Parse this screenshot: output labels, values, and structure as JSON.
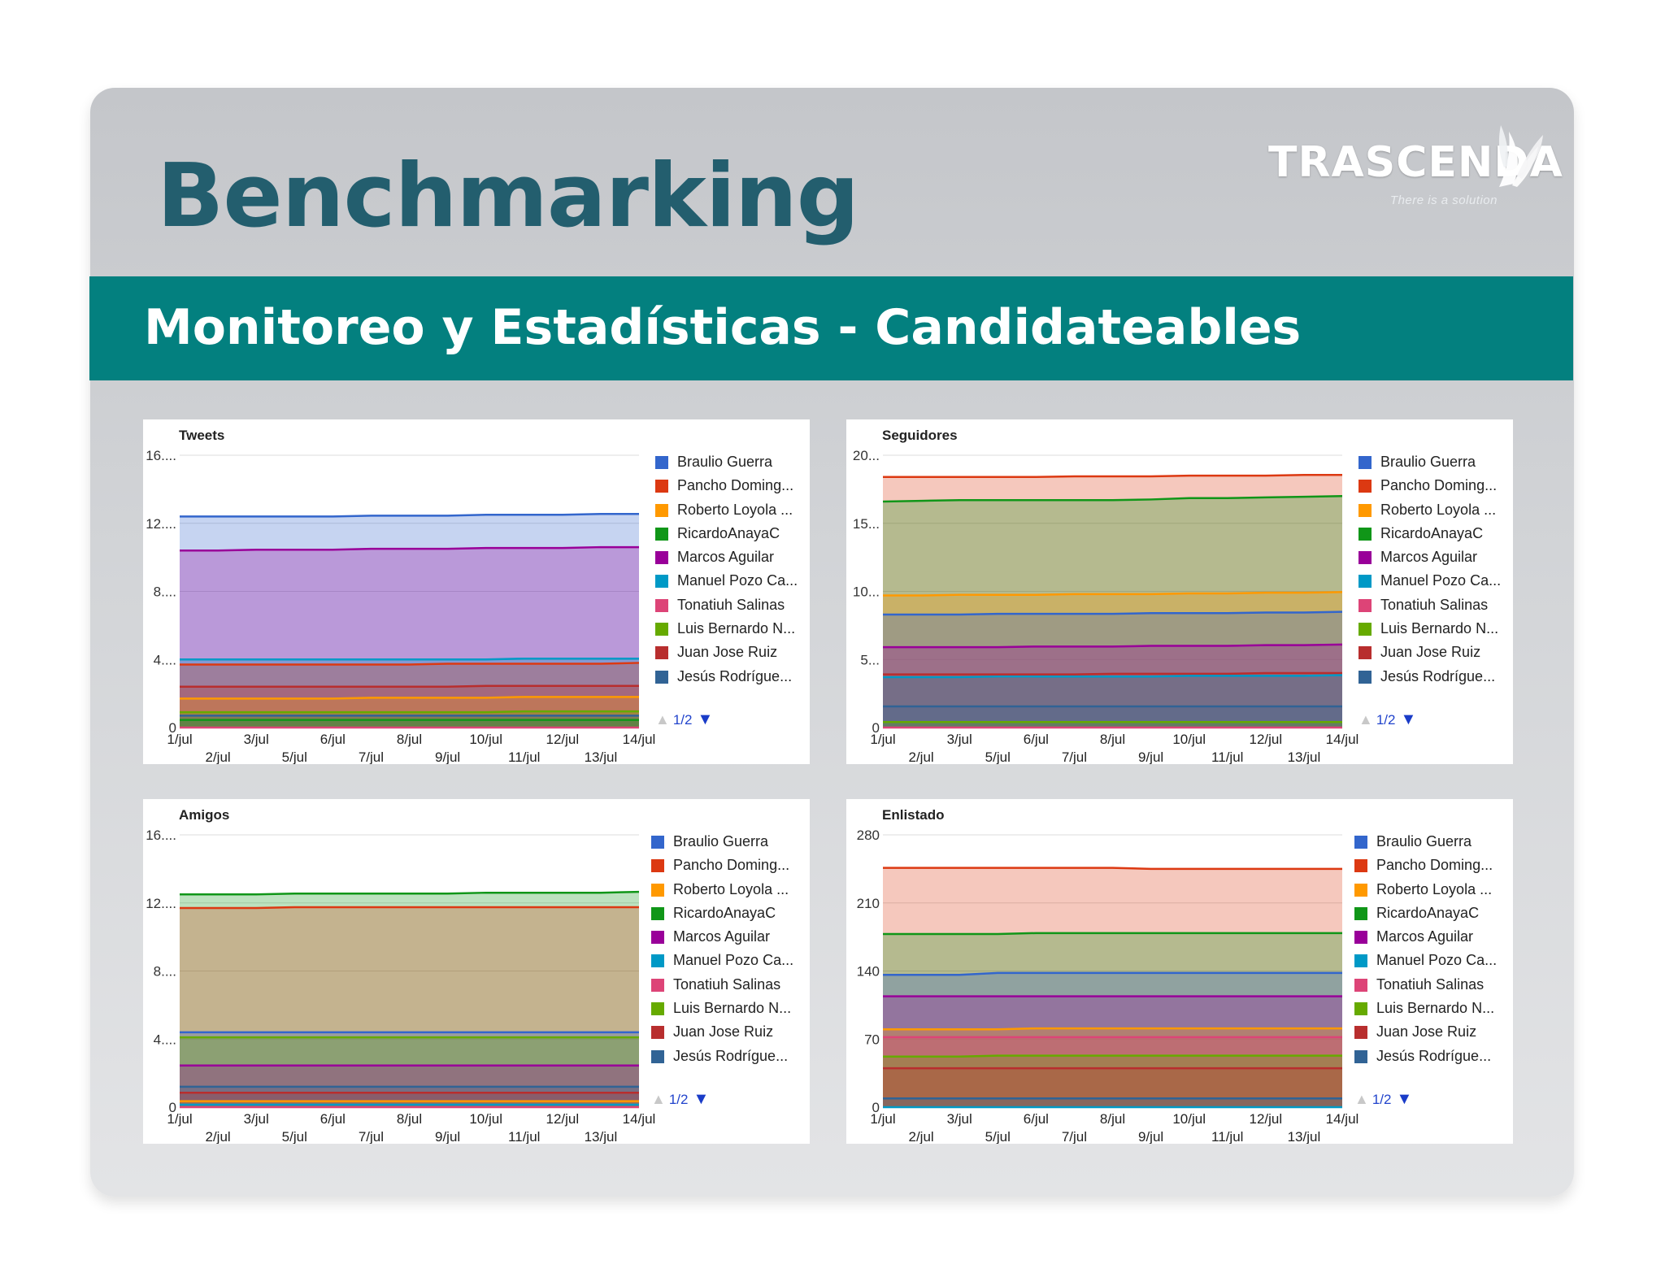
{
  "slide": {
    "title": "Benchmarking",
    "subtitle": "Monitoreo y Estadísticas - Candidateables",
    "brand_name": "TRASCENDA",
    "brand_tagline": "There is a solution",
    "colors": {
      "title": "#235e6e",
      "band": "#03807f",
      "background": "#ffffff"
    }
  },
  "legend": {
    "items": [
      {
        "label": "Braulio Guerra",
        "color": "#3366cc"
      },
      {
        "label": "Pancho Doming...",
        "color": "#dc3912"
      },
      {
        "label": "Roberto Loyola ...",
        "color": "#ff9900"
      },
      {
        "label": "RicardoAnayaC",
        "color": "#109618"
      },
      {
        "label": "Marcos Aguilar",
        "color": "#990099"
      },
      {
        "label": "Manuel Pozo Ca...",
        "color": "#0099c6"
      },
      {
        "label": "Tonatiuh Salinas",
        "color": "#dd4477"
      },
      {
        "label": "Luis Bernardo N...",
        "color": "#66aa00"
      },
      {
        "label": "Juan Jose Ruiz",
        "color": "#b82e2e"
      },
      {
        "label": "Jesús Rodrígue...",
        "color": "#316395"
      }
    ],
    "page_label": "1/2",
    "up_arrow": "▲",
    "down_arrow": "▼"
  },
  "chart_data": [
    {
      "type": "area",
      "title": "Tweets",
      "x": [
        "1/jul",
        "2/jul",
        "3/jul",
        "5/jul",
        "6/jul",
        "7/jul",
        "8/jul",
        "9/jul",
        "10/jul",
        "11/jul",
        "12/jul",
        "13/jul",
        "14/jul"
      ],
      "x_tick_labels": [
        "1/jul",
        "2/jul",
        "3/jul",
        "5/jul",
        "6/jul",
        "7/jul",
        "8/jul",
        "9/jul",
        "10/jul",
        "11/jul",
        "12/jul",
        "13/jul",
        "14/jul"
      ],
      "y_tick_labels": [
        "0",
        "4....",
        "8....",
        "12....",
        "16...."
      ],
      "ylim": [
        0,
        16
      ],
      "series": [
        {
          "name": "Braulio Guerra",
          "color": "#3366cc",
          "values": [
            12.4,
            12.4,
            12.4,
            12.4,
            12.4,
            12.45,
            12.45,
            12.45,
            12.5,
            12.5,
            12.5,
            12.55,
            12.55
          ]
        },
        {
          "name": "Marcos Aguilar",
          "color": "#990099",
          "values": [
            10.4,
            10.4,
            10.45,
            10.45,
            10.45,
            10.5,
            10.5,
            10.5,
            10.55,
            10.55,
            10.55,
            10.6,
            10.6
          ]
        },
        {
          "name": "Manuel Pozo Ca...",
          "color": "#0099c6",
          "values": [
            4.0,
            4.0,
            4.0,
            4.0,
            4.0,
            4.0,
            4.0,
            4.0,
            4.0,
            4.05,
            4.05,
            4.05,
            4.05
          ]
        },
        {
          "name": "Pancho Doming...",
          "color": "#dc3912",
          "values": [
            3.7,
            3.7,
            3.7,
            3.7,
            3.7,
            3.7,
            3.7,
            3.75,
            3.75,
            3.75,
            3.75,
            3.75,
            3.8
          ]
        },
        {
          "name": "Juan Jose Ruiz",
          "color": "#b82e2e",
          "values": [
            2.4,
            2.4,
            2.4,
            2.4,
            2.4,
            2.4,
            2.4,
            2.4,
            2.45,
            2.45,
            2.45,
            2.45,
            2.45
          ]
        },
        {
          "name": "Roberto Loyola ...",
          "color": "#ff9900",
          "values": [
            1.7,
            1.7,
            1.7,
            1.7,
            1.7,
            1.75,
            1.75,
            1.75,
            1.75,
            1.8,
            1.8,
            1.8,
            1.8
          ]
        },
        {
          "name": "Luis Bernardo N...",
          "color": "#66aa00",
          "values": [
            0.9,
            0.9,
            0.9,
            0.9,
            0.9,
            0.9,
            0.9,
            0.9,
            0.9,
            0.95,
            0.95,
            0.95,
            0.95
          ]
        },
        {
          "name": "Jesús Rodrígue...",
          "color": "#316395",
          "values": [
            0.7,
            0.7,
            0.7,
            0.7,
            0.7,
            0.7,
            0.7,
            0.7,
            0.7,
            0.7,
            0.7,
            0.7,
            0.7
          ]
        },
        {
          "name": "RicardoAnayaC",
          "color": "#109618",
          "values": [
            0.45,
            0.45,
            0.45,
            0.45,
            0.45,
            0.45,
            0.45,
            0.45,
            0.45,
            0.45,
            0.45,
            0.45,
            0.45
          ]
        },
        {
          "name": "Tonatiuh Salinas",
          "color": "#dd4477",
          "values": [
            0,
            0,
            0,
            0,
            0,
            0,
            0,
            0,
            0,
            0,
            0,
            0,
            0
          ]
        }
      ]
    },
    {
      "type": "area",
      "title": "Seguidores",
      "x": [
        "1/jul",
        "2/jul",
        "3/jul",
        "5/jul",
        "6/jul",
        "7/jul",
        "8/jul",
        "9/jul",
        "10/jul",
        "11/jul",
        "12/jul",
        "13/jul",
        "14/jul"
      ],
      "x_tick_labels": [
        "1/jul",
        "2/jul",
        "3/jul",
        "5/jul",
        "6/jul",
        "7/jul",
        "8/jul",
        "9/jul",
        "10/jul",
        "11/jul",
        "12/jul",
        "13/jul",
        "14/jul"
      ],
      "y_tick_labels": [
        "0",
        "5...",
        "10...",
        "15...",
        "20..."
      ],
      "ylim": [
        0,
        20
      ],
      "series": [
        {
          "name": "Pancho Doming...",
          "color": "#dc3912",
          "values": [
            18.4,
            18.4,
            18.4,
            18.4,
            18.4,
            18.45,
            18.45,
            18.45,
            18.5,
            18.5,
            18.5,
            18.55,
            18.55
          ]
        },
        {
          "name": "RicardoAnayaC",
          "color": "#109618",
          "values": [
            16.6,
            16.65,
            16.7,
            16.7,
            16.7,
            16.7,
            16.7,
            16.75,
            16.85,
            16.85,
            16.9,
            16.95,
            17.0
          ]
        },
        {
          "name": "Roberto Loyola ...",
          "color": "#ff9900",
          "values": [
            9.7,
            9.7,
            9.75,
            9.75,
            9.75,
            9.8,
            9.8,
            9.8,
            9.85,
            9.85,
            9.9,
            9.9,
            9.95
          ]
        },
        {
          "name": "Braulio Guerra",
          "color": "#3366cc",
          "values": [
            8.3,
            8.3,
            8.3,
            8.35,
            8.35,
            8.35,
            8.35,
            8.4,
            8.4,
            8.4,
            8.45,
            8.45,
            8.5
          ]
        },
        {
          "name": "Marcos Aguilar",
          "color": "#990099",
          "values": [
            5.9,
            5.9,
            5.9,
            5.9,
            5.95,
            5.95,
            5.95,
            6.0,
            6.0,
            6.0,
            6.05,
            6.05,
            6.1
          ]
        },
        {
          "name": "Juan Jose Ruiz",
          "color": "#b82e2e",
          "values": [
            3.9,
            3.9,
            3.9,
            3.9,
            3.9,
            3.9,
            3.95,
            3.95,
            3.95,
            3.95,
            4.0,
            4.0,
            4.0
          ]
        },
        {
          "name": "Manuel Pozo Ca...",
          "color": "#0099c6",
          "values": [
            3.7,
            3.7,
            3.7,
            3.75,
            3.75,
            3.75,
            3.75,
            3.75,
            3.8,
            3.8,
            3.8,
            3.8,
            3.85
          ]
        },
        {
          "name": "Jesús Rodrígue...",
          "color": "#316395",
          "values": [
            1.55,
            1.55,
            1.55,
            1.55,
            1.55,
            1.55,
            1.55,
            1.55,
            1.55,
            1.55,
            1.55,
            1.55,
            1.55
          ]
        },
        {
          "name": "Luis Bernardo N...",
          "color": "#66aa00",
          "values": [
            0.4,
            0.4,
            0.4,
            0.4,
            0.4,
            0.4,
            0.4,
            0.4,
            0.4,
            0.4,
            0.4,
            0.4,
            0.4
          ]
        },
        {
          "name": "Tonatiuh Salinas",
          "color": "#dd4477",
          "values": [
            0,
            0,
            0,
            0,
            0,
            0,
            0,
            0,
            0,
            0,
            0,
            0,
            0
          ]
        }
      ]
    },
    {
      "type": "area",
      "title": "Amigos",
      "x": [
        "1/jul",
        "2/jul",
        "3/jul",
        "5/jul",
        "6/jul",
        "7/jul",
        "8/jul",
        "9/jul",
        "10/jul",
        "11/jul",
        "12/jul",
        "13/jul",
        "14/jul"
      ],
      "x_tick_labels": [
        "1/jul",
        "2/jul",
        "3/jul",
        "5/jul",
        "6/jul",
        "7/jul",
        "8/jul",
        "9/jul",
        "10/jul",
        "11/jul",
        "12/jul",
        "13/jul",
        "14/jul"
      ],
      "y_tick_labels": [
        "0",
        "4....",
        "8....",
        "12....",
        "16...."
      ],
      "ylim": [
        0,
        16
      ],
      "series": [
        {
          "name": "RicardoAnayaC",
          "color": "#109618",
          "values": [
            12.5,
            12.5,
            12.5,
            12.55,
            12.55,
            12.55,
            12.55,
            12.55,
            12.6,
            12.6,
            12.6,
            12.6,
            12.65
          ]
        },
        {
          "name": "Pancho Doming...",
          "color": "#dc3912",
          "values": [
            11.7,
            11.7,
            11.7,
            11.75,
            11.75,
            11.75,
            11.75,
            11.75,
            11.75,
            11.75,
            11.75,
            11.75,
            11.75
          ]
        },
        {
          "name": "Braulio Guerra",
          "color": "#3366cc",
          "values": [
            4.4,
            4.4,
            4.4,
            4.4,
            4.4,
            4.4,
            4.4,
            4.4,
            4.4,
            4.4,
            4.4,
            4.4,
            4.4
          ]
        },
        {
          "name": "Luis Bernardo N...",
          "color": "#66aa00",
          "values": [
            4.1,
            4.1,
            4.1,
            4.1,
            4.1,
            4.1,
            4.1,
            4.1,
            4.1,
            4.1,
            4.1,
            4.1,
            4.1
          ]
        },
        {
          "name": "Marcos Aguilar",
          "color": "#990099",
          "values": [
            2.45,
            2.45,
            2.45,
            2.45,
            2.45,
            2.45,
            2.45,
            2.45,
            2.45,
            2.45,
            2.45,
            2.45,
            2.45
          ]
        },
        {
          "name": "Jesús Rodrígue...",
          "color": "#316395",
          "values": [
            1.2,
            1.2,
            1.2,
            1.2,
            1.2,
            1.2,
            1.2,
            1.2,
            1.2,
            1.2,
            1.2,
            1.2,
            1.2
          ]
        },
        {
          "name": "Juan Jose Ruiz",
          "color": "#b82e2e",
          "values": [
            0.85,
            0.85,
            0.85,
            0.85,
            0.85,
            0.85,
            0.85,
            0.85,
            0.85,
            0.85,
            0.85,
            0.85,
            0.85
          ]
        },
        {
          "name": "Roberto Loyola ...",
          "color": "#ff9900",
          "values": [
            0.35,
            0.35,
            0.35,
            0.35,
            0.35,
            0.35,
            0.35,
            0.35,
            0.35,
            0.35,
            0.35,
            0.35,
            0.35
          ]
        },
        {
          "name": "Manuel Pozo Ca...",
          "color": "#0099c6",
          "values": [
            0.15,
            0.15,
            0.15,
            0.15,
            0.15,
            0.15,
            0.15,
            0.15,
            0.15,
            0.15,
            0.15,
            0.15,
            0.15
          ]
        },
        {
          "name": "Tonatiuh Salinas",
          "color": "#dd4477",
          "values": [
            0,
            0,
            0,
            0,
            0,
            0,
            0,
            0,
            0,
            0,
            0,
            0,
            0
          ]
        }
      ]
    },
    {
      "type": "area",
      "title": "Enlistado",
      "x": [
        "1/jul",
        "2/jul",
        "3/jul",
        "5/jul",
        "6/jul",
        "7/jul",
        "8/jul",
        "9/jul",
        "10/jul",
        "11/jul",
        "12/jul",
        "13/jul",
        "14/jul"
      ],
      "x_tick_labels": [
        "1/jul",
        "2/jul",
        "3/jul",
        "5/jul",
        "6/jul",
        "7/jul",
        "8/jul",
        "9/jul",
        "10/jul",
        "11/jul",
        "12/jul",
        "13/jul",
        "14/jul"
      ],
      "y_tick_labels": [
        "0",
        "70",
        "140",
        "210",
        "280"
      ],
      "ylim": [
        0,
        280
      ],
      "series": [
        {
          "name": "Pancho Doming...",
          "color": "#dc3912",
          "values": [
            246,
            246,
            246,
            246,
            246,
            246,
            246,
            245,
            245,
            245,
            245,
            245,
            245
          ]
        },
        {
          "name": "RicardoAnayaC",
          "color": "#109618",
          "values": [
            178,
            178,
            178,
            178,
            179,
            179,
            179,
            179,
            179,
            179,
            179,
            179,
            179
          ]
        },
        {
          "name": "Braulio Guerra",
          "color": "#3366cc",
          "values": [
            136,
            136,
            136,
            138,
            138,
            138,
            138,
            138,
            138,
            138,
            138,
            138,
            138
          ]
        },
        {
          "name": "Marcos Aguilar",
          "color": "#990099",
          "values": [
            114,
            114,
            114,
            114,
            114,
            114,
            114,
            114,
            114,
            114,
            114,
            114,
            114
          ]
        },
        {
          "name": "Roberto Loyola ...",
          "color": "#ff9900",
          "values": [
            80,
            80,
            80,
            80,
            81,
            81,
            81,
            81,
            81,
            81,
            81,
            81,
            81
          ]
        },
        {
          "name": "Tonatiuh Salinas",
          "color": "#dd4477",
          "values": [
            72,
            72,
            72,
            72,
            72,
            72,
            72,
            72,
            72,
            72,
            72,
            72,
            72
          ]
        },
        {
          "name": "Luis Bernardo N...",
          "color": "#66aa00",
          "values": [
            52,
            52,
            52,
            53,
            53,
            53,
            53,
            53,
            53,
            53,
            53,
            53,
            53
          ]
        },
        {
          "name": "Juan Jose Ruiz",
          "color": "#b82e2e",
          "values": [
            40,
            40,
            40,
            40,
            40,
            40,
            40,
            40,
            40,
            40,
            40,
            40,
            40
          ]
        },
        {
          "name": "Jesús Rodrígue...",
          "color": "#316395",
          "values": [
            9,
            9,
            9,
            9,
            9,
            9,
            9,
            9,
            9,
            9,
            9,
            9,
            9
          ]
        },
        {
          "name": "Manuel Pozo Ca...",
          "color": "#0099c6",
          "values": [
            0,
            0,
            0,
            0,
            0,
            0,
            0,
            0,
            0,
            0,
            0,
            0,
            0
          ]
        }
      ]
    }
  ]
}
